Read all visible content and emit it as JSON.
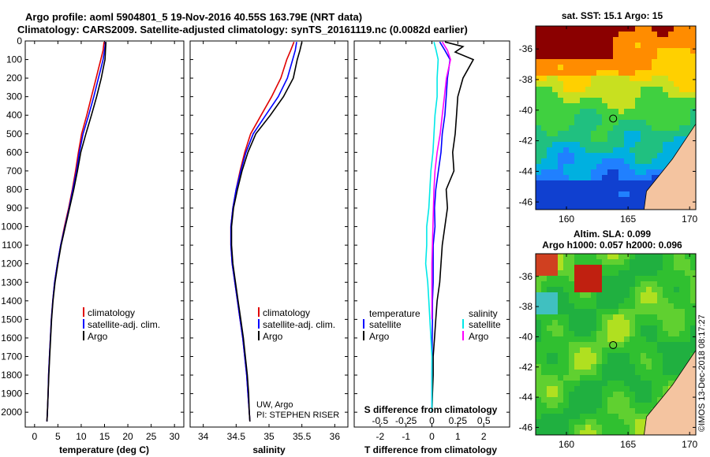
{
  "header": {
    "title_line1": "Argo profile: aoml 5904801_5 19-Nov-2016 40.55S 163.79E (NRT data)",
    "title_line2": "Climatology: CARS2009. Satellite-adjusted climatology: synTS_20161119.nc (0.0082d earlier)"
  },
  "colors": {
    "climatology": "#e00000",
    "satellite": "#0000ff",
    "argo": "#000000",
    "sat_salinity": "#00e8e8",
    "argo_salinity_diff": "#ff00ff",
    "land": "#f4c4a0"
  },
  "legend": {
    "climatology": "climatology",
    "satellite": "satellite-adj. clim.",
    "argo": "Argo",
    "temperature_head": "temperature",
    "salinity_head": "salinity",
    "satellite_short": "satellite"
  },
  "credits": {
    "line1": "UW, Argo",
    "line2": "PI: STEPHEN RISER"
  },
  "watermark": "©IMOS 13-Dec-2018 08:17:27",
  "maps": {
    "sst_title": "sat. SST: 15.1 Argo: 15",
    "sla_title1": "Altim. SLA: 0.099",
    "sla_title2": "Argo h1000: 0.057 h2000: 0.096",
    "lat_ticks": [
      "-36",
      "-38",
      "-40",
      "-42",
      "-44",
      "-46"
    ],
    "lon_ticks": [
      "160",
      "165",
      "170"
    ],
    "lat_range": [
      -46.5,
      -34.5
    ],
    "lon_range": [
      157.5,
      170.5
    ],
    "argo_position": {
      "lat": -40.55,
      "lon": 163.79
    }
  },
  "chart_data": [
    {
      "type": "line",
      "xlabel": "temperature (deg C)",
      "ylabel": "",
      "xlim": [
        -2,
        32
      ],
      "ylim": [
        2080,
        0
      ],
      "xticks": [
        "0",
        "5",
        "10",
        "15",
        "20",
        "25",
        "30"
      ],
      "yticks": [
        "0",
        "100",
        "200",
        "300",
        "400",
        "500",
        "600",
        "700",
        "800",
        "900",
        "1000",
        "1100",
        "1200",
        "1300",
        "1400",
        "1500",
        "1600",
        "1700",
        "1800",
        "1900",
        "2000"
      ],
      "series": [
        {
          "name": "climatology",
          "depth": [
            5,
            50,
            100,
            150,
            200,
            300,
            400,
            500,
            600,
            700,
            800,
            900,
            1000,
            1100,
            1200,
            1300,
            1400,
            1500,
            1600,
            1700,
            1800,
            1900,
            2000,
            2050
          ],
          "values": [
            14.9,
            14.7,
            14.2,
            13.7,
            13.2,
            12.2,
            11.2,
            10.1,
            9.4,
            8.8,
            8.1,
            7.3,
            6.4,
            5.6,
            4.9,
            4.3,
            3.9,
            3.6,
            3.4,
            3.2,
            3.0,
            2.9,
            2.75,
            2.65
          ]
        },
        {
          "name": "satellite-adj. clim.",
          "depth": [
            5,
            50,
            100,
            150,
            200,
            300,
            400,
            500,
            600,
            700,
            800,
            900,
            1000,
            1100,
            1200,
            1300,
            1400,
            1500,
            1600,
            1700,
            1800,
            1900,
            2000,
            2050
          ],
          "values": [
            15.2,
            15.0,
            14.7,
            14.2,
            13.7,
            12.7,
            11.6,
            10.4,
            9.6,
            9.0,
            8.2,
            7.4,
            6.5,
            5.6,
            4.9,
            4.3,
            3.9,
            3.6,
            3.4,
            3.2,
            3.0,
            2.9,
            2.75,
            2.65
          ]
        },
        {
          "name": "Argo",
          "depth": [
            5,
            50,
            100,
            150,
            200,
            300,
            400,
            500,
            600,
            700,
            800,
            900,
            1000,
            1100,
            1200,
            1300,
            1400,
            1500,
            1600,
            1700,
            1800,
            1900,
            2000,
            2050
          ],
          "values": [
            15.3,
            15.2,
            15.1,
            14.7,
            14.3,
            13.3,
            12.2,
            11.0,
            9.9,
            9.2,
            8.4,
            7.5,
            6.6,
            5.7,
            5.0,
            4.4,
            3.95,
            3.65,
            3.45,
            3.25,
            3.05,
            2.9,
            2.75,
            2.65
          ]
        }
      ]
    },
    {
      "type": "line",
      "xlabel": "salinity",
      "xlim": [
        33.8,
        36.2
      ],
      "ylim": [
        2080,
        0
      ],
      "xticks": [
        "34",
        "34.5",
        "35",
        "35.5",
        "36"
      ],
      "series": [
        {
          "name": "climatology",
          "depth": [
            5,
            50,
            100,
            200,
            300,
            400,
            500,
            600,
            700,
            800,
            900,
            1000,
            1100,
            1200,
            1300,
            1400,
            1500,
            1600,
            1700,
            1800,
            1900,
            2000,
            2050
          ],
          "values": [
            35.38,
            35.33,
            35.27,
            35.18,
            35.04,
            34.88,
            34.72,
            34.63,
            34.56,
            34.5,
            34.45,
            34.42,
            34.42,
            34.44,
            34.48,
            34.52,
            34.56,
            34.6,
            34.63,
            34.66,
            34.68,
            34.7,
            34.71
          ]
        },
        {
          "name": "satellite-adj. clim.",
          "depth": [
            5,
            50,
            100,
            200,
            300,
            400,
            500,
            600,
            700,
            800,
            900,
            1000,
            1100,
            1200,
            1300,
            1400,
            1500,
            1600,
            1700,
            1800,
            1900,
            2000,
            2050
          ],
          "values": [
            35.42,
            35.4,
            35.36,
            35.28,
            35.14,
            34.95,
            34.76,
            34.65,
            34.57,
            34.5,
            34.45,
            34.42,
            34.42,
            34.44,
            34.48,
            34.52,
            34.56,
            34.6,
            34.63,
            34.66,
            34.68,
            34.7,
            34.71
          ]
        },
        {
          "name": "Argo",
          "depth": [
            5,
            50,
            100,
            200,
            300,
            400,
            500,
            600,
            700,
            800,
            900,
            1000,
            1100,
            1200,
            1300,
            1400,
            1500,
            1600,
            1700,
            1800,
            1900,
            2000,
            2050
          ],
          "values": [
            35.5,
            35.47,
            35.43,
            35.37,
            35.22,
            35.02,
            34.8,
            34.68,
            34.59,
            34.52,
            34.46,
            34.43,
            34.43,
            34.45,
            34.49,
            34.53,
            34.57,
            34.61,
            34.64,
            34.67,
            34.69,
            34.7,
            34.71
          ]
        }
      ]
    },
    {
      "type": "line",
      "xlabel": "T difference from climatology",
      "xlabel_top": "S difference from climatology",
      "xlim": [
        -3,
        3
      ],
      "ylim": [
        2080,
        0
      ],
      "xticks": [
        "-2",
        "-1",
        "0",
        "1",
        "2"
      ],
      "top_xticks": [
        "-0.5",
        "-0.25",
        "0",
        "0.25",
        "0.5"
      ],
      "series": [
        {
          "name": "temperature satellite",
          "depth": [
            5,
            50,
            100,
            200,
            300,
            400,
            500,
            600,
            700,
            800,
            900,
            1000,
            1100,
            1200,
            1300,
            1400,
            1500,
            1600,
            1700,
            1800,
            1900,
            2000
          ],
          "values": [
            0.3,
            0.5,
            0.7,
            0.6,
            0.55,
            0.5,
            0.4,
            0.35,
            0.25,
            0.15,
            0.1,
            0.12,
            0.05,
            0.05,
            0.05,
            0.02,
            0.02,
            0.01,
            0.01,
            0.0,
            0.0,
            0.0
          ]
        },
        {
          "name": "temperature Argo",
          "depth": [
            5,
            30,
            60,
            100,
            150,
            200,
            300,
            400,
            500,
            600,
            700,
            800,
            900,
            1000,
            1100,
            1200,
            1300,
            1400,
            1500,
            1600,
            1700,
            1800,
            1900,
            2000
          ],
          "values": [
            0.5,
            1.2,
            0.9,
            1.6,
            1.4,
            1.2,
            1.0,
            0.95,
            0.9,
            0.8,
            0.85,
            0.55,
            0.6,
            0.5,
            0.4,
            0.35,
            0.3,
            0.2,
            0.15,
            0.1,
            0.05,
            0.05,
            0.02,
            0.0
          ]
        },
        {
          "name": "salinity satellite",
          "depth": [
            5,
            50,
            100,
            200,
            300,
            400,
            500,
            600,
            700,
            800,
            900,
            1000,
            1100,
            1200,
            1300,
            1400,
            1500,
            1600,
            1700,
            1800,
            1900,
            2000
          ],
          "values": [
            0.02,
            0.04,
            0.06,
            0.05,
            0.05,
            0.03,
            0.02,
            0.01,
            -0.01,
            -0.02,
            -0.03,
            -0.05,
            -0.05,
            -0.06,
            -0.04,
            -0.03,
            -0.02,
            -0.01,
            0.0,
            0.0,
            0.0,
            0.0
          ]
        },
        {
          "name": "salinity Argo",
          "depth": [
            5,
            50,
            100,
            150,
            200,
            300,
            400,
            500,
            600,
            700,
            800,
            1000,
            1200,
            1400,
            1500
          ],
          "values": [
            0.1,
            0.15,
            0.18,
            0.16,
            0.14,
            0.12,
            0.1,
            0.08,
            0.05,
            0.03,
            0.02,
            0.01,
            0.0,
            0.0,
            0.0
          ]
        }
      ]
    }
  ]
}
